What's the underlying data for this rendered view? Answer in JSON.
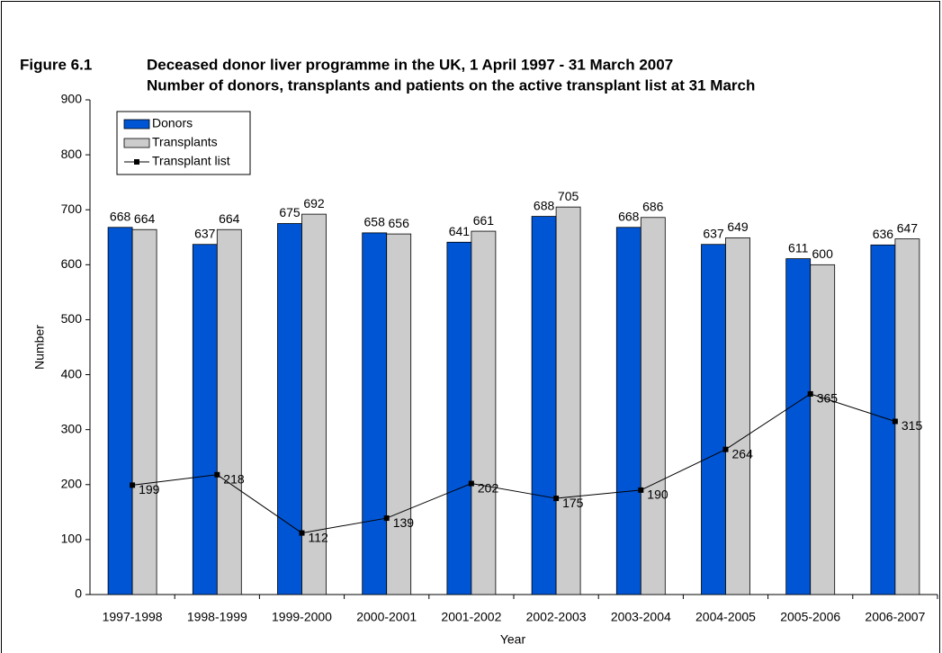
{
  "chart_data": {
    "type": "bar",
    "figure_label": "Figure 6.1",
    "title": "Deceased donor liver programme in the UK, 1 April 1997 - 31 March 2007",
    "subtitle": "Number of donors, transplants and patients on the active transplant list at 31 March",
    "x_label": "Year",
    "y_label": "Number",
    "categories": [
      "1997-1998",
      "1998-1999",
      "1999-2000",
      "2000-2001",
      "2001-2002",
      "2002-2003",
      "2003-2004",
      "2004-2005",
      "2005-2006",
      "2006-2007"
    ],
    "series": [
      {
        "name": "Donors",
        "color": "#0055d4",
        "values": [
          668,
          637,
          675,
          658,
          641,
          688,
          668,
          637,
          611,
          636
        ]
      },
      {
        "name": "Transplants",
        "color": "#cccccc",
        "values": [
          664,
          664,
          692,
          656,
          661,
          705,
          686,
          649,
          600,
          647
        ]
      },
      {
        "name": "Transplant list",
        "type": "line",
        "color": "#000000",
        "values": [
          199,
          218,
          112,
          139,
          202,
          175,
          190,
          264,
          365,
          315
        ]
      }
    ],
    "ylim": [
      0,
      900
    ],
    "yticks": [
      0,
      100,
      200,
      300,
      400,
      500,
      600,
      700,
      800,
      900
    ],
    "grid": false,
    "legend": "top-left"
  }
}
